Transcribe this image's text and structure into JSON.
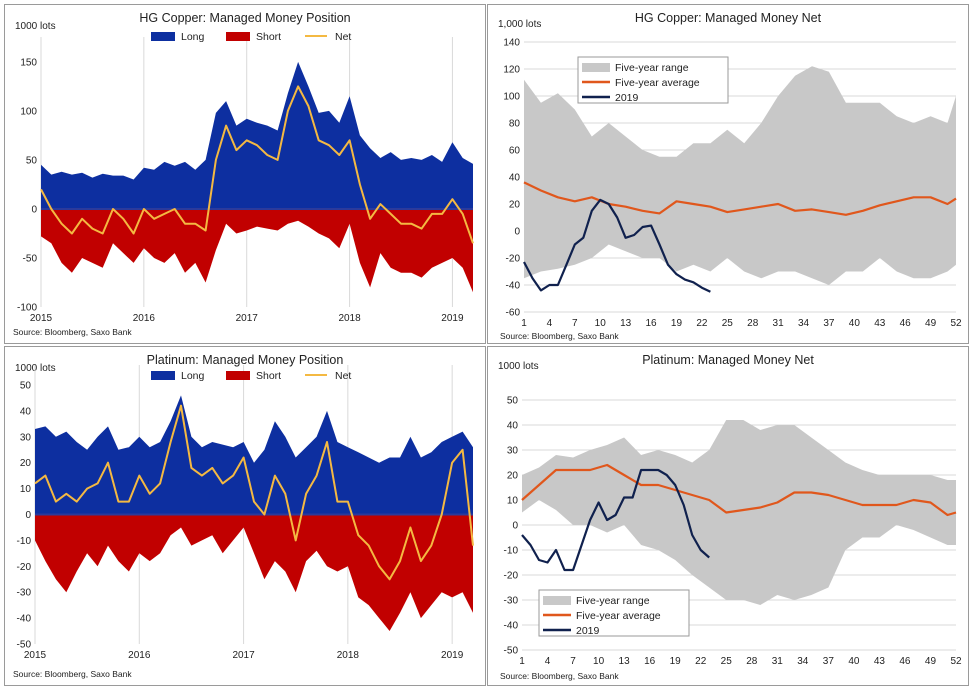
{
  "colors": {
    "long": "#0d2fa0",
    "short": "#c10000",
    "net": "#f4b942",
    "range": "#c8c8c8",
    "average": "#e0571c",
    "current": "#10214e",
    "zero": "#2b3a9c"
  },
  "chart_data": [
    {
      "id": "hg_position",
      "type": "area",
      "title": "HG Copper:  Managed Money Position",
      "unit": "1000 lots",
      "source": "Source: Bloomberg, Saxo Bank",
      "legend": [
        "Long",
        "Short",
        "Net"
      ],
      "legend_position": "top-center",
      "x_labels": [
        "2015",
        "2016",
        "2017",
        "2018",
        "2019"
      ],
      "y_ticks": [
        150,
        100,
        50,
        0,
        -50,
        -100
      ],
      "ylim": [
        -100,
        155
      ],
      "xlim": [
        2015,
        2019.2
      ],
      "x": [
        2015.0,
        2015.1,
        2015.2,
        2015.3,
        2015.4,
        2015.5,
        2015.6,
        2015.7,
        2015.8,
        2015.9,
        2016.0,
        2016.1,
        2016.2,
        2016.3,
        2016.4,
        2016.5,
        2016.6,
        2016.7,
        2016.8,
        2016.9,
        2017.0,
        2017.1,
        2017.2,
        2017.3,
        2017.4,
        2017.5,
        2017.6,
        2017.7,
        2017.8,
        2017.9,
        2018.0,
        2018.1,
        2018.2,
        2018.3,
        2018.4,
        2018.5,
        2018.6,
        2018.7,
        2018.8,
        2018.9,
        2019.0,
        2019.1,
        2019.2
      ],
      "long": [
        45,
        35,
        38,
        35,
        37,
        32,
        36,
        34,
        34,
        30,
        42,
        40,
        48,
        44,
        48,
        40,
        50,
        98,
        110,
        85,
        92,
        88,
        85,
        80,
        118,
        150,
        125,
        98,
        100,
        88,
        115,
        75,
        62,
        52,
        58,
        50,
        52,
        50,
        55,
        48,
        68,
        52,
        46
      ],
      "short": [
        -28,
        -35,
        -55,
        -65,
        -50,
        -55,
        -60,
        -35,
        -45,
        -55,
        -40,
        -50,
        -55,
        -45,
        -65,
        -55,
        -75,
        -42,
        -15,
        -25,
        -22,
        -18,
        -20,
        -22,
        -15,
        -12,
        -18,
        -25,
        -30,
        -40,
        -15,
        -55,
        -80,
        -45,
        -60,
        -65,
        -65,
        -70,
        -60,
        -55,
        -50,
        -60,
        -85
      ],
      "net": [
        20,
        0,
        -15,
        -25,
        -10,
        -20,
        -25,
        0,
        -10,
        -25,
        0,
        -10,
        -5,
        0,
        -15,
        -15,
        -22,
        50,
        85,
        60,
        70,
        65,
        55,
        50,
        100,
        125,
        105,
        70,
        65,
        55,
        70,
        25,
        -10,
        5,
        -5,
        -15,
        -15,
        -20,
        -5,
        -5,
        10,
        -5,
        -35
      ]
    },
    {
      "id": "hg_net",
      "type": "line",
      "title": "HG Copper:  Managed Money Net",
      "unit": "1,000 lots",
      "source": "Source: Bloomberg,  Saxo Bank",
      "legend": [
        "Five-year range",
        "Five-year average",
        "2019"
      ],
      "legend_position": "top-left",
      "x_ticks": [
        1,
        4,
        7,
        10,
        13,
        16,
        19,
        22,
        25,
        28,
        31,
        34,
        37,
        40,
        43,
        46,
        49,
        52
      ],
      "y_ticks": [
        140,
        120,
        100,
        80,
        60,
        40,
        20,
        0,
        -20,
        -40,
        -60
      ],
      "ylim": [
        -60,
        140
      ],
      "xlim": [
        1,
        52
      ],
      "weeks": [
        1,
        3,
        5,
        7,
        9,
        11,
        13,
        15,
        17,
        19,
        21,
        23,
        25,
        27,
        29,
        31,
        33,
        35,
        37,
        39,
        41,
        43,
        45,
        47,
        49,
        51,
        52
      ],
      "range_max": [
        112,
        95,
        102,
        90,
        70,
        80,
        70,
        60,
        55,
        55,
        65,
        65,
        75,
        65,
        80,
        100,
        115,
        122,
        118,
        95,
        95,
        95,
        85,
        80,
        85,
        80,
        100
      ],
      "range_min": [
        -35,
        -30,
        -28,
        -25,
        -20,
        -10,
        -15,
        -20,
        -20,
        -30,
        -25,
        -30,
        -20,
        -30,
        -35,
        -30,
        -30,
        -35,
        -40,
        -30,
        -30,
        -20,
        -30,
        -35,
        -35,
        -30,
        -25
      ],
      "average": [
        36,
        30,
        25,
        22,
        25,
        20,
        18,
        15,
        13,
        22,
        20,
        18,
        14,
        16,
        18,
        20,
        15,
        16,
        14,
        12,
        15,
        19,
        22,
        25,
        25,
        20,
        24
      ],
      "current_weeks": [
        1,
        2,
        3,
        4,
        5,
        6,
        7,
        8,
        9,
        10,
        11,
        12,
        13,
        14,
        15,
        16,
        17,
        18,
        19,
        20,
        21,
        22,
        23
      ],
      "current": [
        -23,
        -35,
        -44,
        -40,
        -40,
        -25,
        -10,
        -5,
        15,
        23,
        20,
        10,
        -5,
        -3,
        3,
        4,
        -10,
        -25,
        -32,
        -36,
        -38,
        -42,
        -45
      ]
    },
    {
      "id": "pt_position",
      "type": "area",
      "title": "Platinum:  Managed Money Position",
      "unit": "1000 lots",
      "source": "Source: Bloomberg, Saxo Bank",
      "legend": [
        "Long",
        "Short",
        "Net"
      ],
      "legend_position": "top-center",
      "x_labels": [
        "2015",
        "2016",
        "2017",
        "2018",
        "2019"
      ],
      "y_ticks": [
        50,
        40,
        30,
        20,
        10,
        0,
        -10,
        -20,
        -30,
        -40,
        -50
      ],
      "ylim": [
        -50,
        50
      ],
      "xlim": [
        2015,
        2019.2
      ],
      "x": [
        2015.0,
        2015.1,
        2015.2,
        2015.3,
        2015.4,
        2015.5,
        2015.6,
        2015.7,
        2015.8,
        2015.9,
        2016.0,
        2016.1,
        2016.2,
        2016.3,
        2016.4,
        2016.5,
        2016.6,
        2016.7,
        2016.8,
        2016.9,
        2017.0,
        2017.1,
        2017.2,
        2017.3,
        2017.4,
        2017.5,
        2017.6,
        2017.7,
        2017.8,
        2017.9,
        2018.0,
        2018.1,
        2018.2,
        2018.3,
        2018.4,
        2018.5,
        2018.6,
        2018.7,
        2018.8,
        2018.9,
        2019.0,
        2019.1,
        2019.2
      ],
      "long": [
        33,
        34,
        30,
        32,
        28,
        25,
        30,
        34,
        25,
        26,
        30,
        26,
        28,
        36,
        46,
        30,
        26,
        28,
        27,
        26,
        28,
        20,
        25,
        36,
        30,
        22,
        26,
        30,
        40,
        28,
        26,
        24,
        22,
        20,
        22,
        22,
        30,
        22,
        24,
        28,
        30,
        32,
        26
      ],
      "short": [
        -10,
        -18,
        -25,
        -30,
        -22,
        -15,
        -20,
        -12,
        -18,
        -22,
        -15,
        -18,
        -15,
        -8,
        -5,
        -12,
        -10,
        -8,
        -15,
        -10,
        -5,
        -15,
        -25,
        -18,
        -22,
        -30,
        -18,
        -14,
        -20,
        -22,
        -20,
        -32,
        -35,
        -40,
        -45,
        -38,
        -30,
        -40,
        -35,
        -30,
        -32,
        -30,
        -38
      ],
      "net": [
        12,
        15,
        5,
        8,
        5,
        10,
        12,
        20,
        5,
        5,
        15,
        8,
        12,
        28,
        42,
        18,
        15,
        18,
        12,
        15,
        22,
        5,
        0,
        15,
        8,
        -10,
        8,
        15,
        28,
        5,
        5,
        -8,
        -12,
        -20,
        -25,
        -18,
        -5,
        -18,
        -12,
        0,
        20,
        25,
        -12
      ]
    },
    {
      "id": "pt_net",
      "type": "line",
      "title": "Platinum:  Managed Money Net",
      "unit": "1000 lots",
      "source": "Source: Bloomberg, Saxo Bank",
      "legend": [
        "Five-year range",
        "Five-year average",
        "2019"
      ],
      "legend_position": "bottom-left",
      "x_ticks": [
        1,
        4,
        7,
        10,
        13,
        16,
        19,
        22,
        25,
        28,
        31,
        34,
        37,
        40,
        43,
        46,
        49,
        52
      ],
      "y_ticks": [
        50,
        40,
        30,
        20,
        10,
        0,
        -10,
        -20,
        -30,
        -40,
        -50
      ],
      "ylim": [
        -50,
        50
      ],
      "xlim": [
        1,
        52
      ],
      "weeks": [
        1,
        3,
        5,
        7,
        9,
        11,
        13,
        15,
        17,
        19,
        21,
        23,
        25,
        27,
        29,
        31,
        33,
        35,
        37,
        39,
        41,
        43,
        45,
        47,
        49,
        51,
        52
      ],
      "range_max": [
        20,
        23,
        28,
        27,
        30,
        32,
        35,
        28,
        30,
        28,
        25,
        30,
        42,
        42,
        38,
        40,
        40,
        35,
        30,
        25,
        22,
        20,
        20,
        20,
        20,
        18,
        18
      ],
      "range_min": [
        5,
        10,
        6,
        0,
        0,
        -3,
        0,
        -8,
        -10,
        -14,
        -20,
        -25,
        -30,
        -30,
        -32,
        -28,
        -30,
        -28,
        -25,
        -10,
        -5,
        -5,
        0,
        -2,
        -5,
        -8,
        -8
      ],
      "average": [
        10,
        16,
        22,
        22,
        22,
        24,
        20,
        16,
        16,
        14,
        12,
        10,
        5,
        6,
        7,
        9,
        13,
        13,
        12,
        10,
        8,
        8,
        8,
        10,
        9,
        4,
        5
      ],
      "current_weeks": [
        1,
        2,
        3,
        4,
        5,
        6,
        7,
        8,
        9,
        10,
        11,
        12,
        13,
        14,
        15,
        16,
        17,
        18,
        19,
        20,
        21,
        22,
        23
      ],
      "current": [
        -4,
        -8,
        -14,
        -15,
        -10,
        -18,
        -18,
        -8,
        2,
        9,
        2,
        4,
        11,
        11,
        22,
        22,
        22,
        20,
        16,
        8,
        -4,
        -10,
        -13
      ]
    }
  ]
}
